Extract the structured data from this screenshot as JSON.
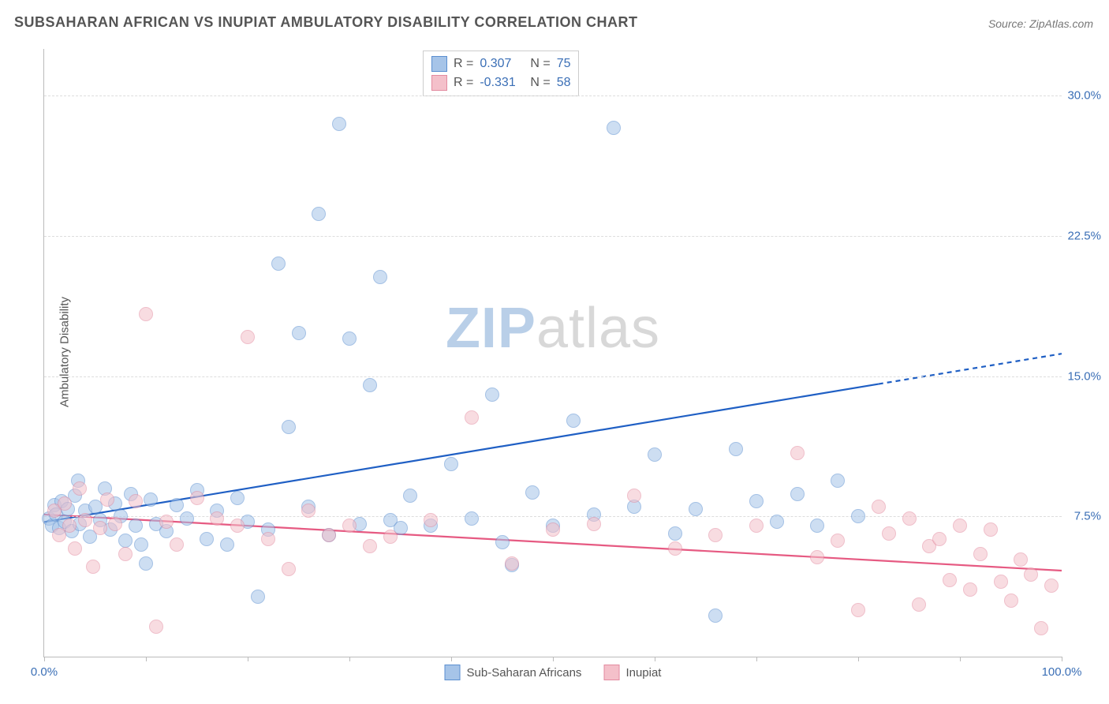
{
  "title": "SUBSAHARAN AFRICAN VS INUPIAT AMBULATORY DISABILITY CORRELATION CHART",
  "source_label": "Source:",
  "source_value": "ZipAtlas.com",
  "y_axis_label": "Ambulatory Disability",
  "watermark_a": "ZIP",
  "watermark_b": "atlas",
  "watermark_color_a": "#b9cfe8",
  "watermark_color_b": "#d8d8d8",
  "chart": {
    "type": "scatter",
    "xlim": [
      0,
      100
    ],
    "ylim": [
      0,
      32.5
    ],
    "x_ticks": [
      0,
      10,
      20,
      30,
      40,
      50,
      60,
      70,
      80,
      90,
      100
    ],
    "x_tick_labels": {
      "0": "0.0%",
      "100": "100.0%"
    },
    "y_gridlines": [
      7.5,
      15.0,
      22.5,
      30.0
    ],
    "y_tick_labels": [
      "7.5%",
      "15.0%",
      "22.5%",
      "30.0%"
    ],
    "y_tick_color": "#3b6fb6",
    "x_tick_color": "#3b6fb6",
    "background": "#ffffff",
    "grid_color": "#dddddd",
    "axis_color": "#bbbbbb",
    "marker_radius": 8,
    "marker_opacity": 0.55,
    "series": [
      {
        "id": "subsaharan",
        "label": "Sub-Saharan Africans",
        "fill": "#a6c4e8",
        "stroke": "#5b8fd0",
        "trend_color": "#1f5fc4",
        "trend_width": 2.2,
        "trend": {
          "x1": 0,
          "y1": 7.2,
          "x2": 100,
          "y2": 16.2,
          "solid_until_x": 82
        },
        "r_value": "0.307",
        "n_value": "75",
        "points": [
          [
            0.5,
            7.4
          ],
          [
            0.8,
            7.0
          ],
          [
            1.0,
            8.1
          ],
          [
            1.2,
            7.6
          ],
          [
            1.5,
            6.9
          ],
          [
            1.7,
            8.3
          ],
          [
            2.0,
            7.2
          ],
          [
            2.3,
            7.9
          ],
          [
            2.7,
            6.7
          ],
          [
            3.0,
            8.6
          ],
          [
            3.3,
            9.4
          ],
          [
            3.5,
            7.1
          ],
          [
            4.0,
            7.8
          ],
          [
            4.5,
            6.4
          ],
          [
            5.0,
            8.0
          ],
          [
            5.5,
            7.3
          ],
          [
            6.0,
            9.0
          ],
          [
            6.5,
            6.8
          ],
          [
            7.0,
            8.2
          ],
          [
            7.5,
            7.5
          ],
          [
            8.0,
            6.2
          ],
          [
            8.5,
            8.7
          ],
          [
            9.0,
            7.0
          ],
          [
            9.5,
            6.0
          ],
          [
            10.0,
            5.0
          ],
          [
            10.5,
            8.4
          ],
          [
            11.0,
            7.1
          ],
          [
            12.0,
            6.7
          ],
          [
            13.0,
            8.1
          ],
          [
            14.0,
            7.4
          ],
          [
            15.0,
            8.9
          ],
          [
            16.0,
            6.3
          ],
          [
            17.0,
            7.8
          ],
          [
            18.0,
            6.0
          ],
          [
            19.0,
            8.5
          ],
          [
            20.0,
            7.2
          ],
          [
            21.0,
            3.2
          ],
          [
            22.0,
            6.8
          ],
          [
            23.0,
            21.0
          ],
          [
            24.0,
            12.3
          ],
          [
            25.0,
            17.3
          ],
          [
            26.0,
            8.0
          ],
          [
            27.0,
            23.7
          ],
          [
            28.0,
            6.5
          ],
          [
            29.0,
            28.5
          ],
          [
            30.0,
            17.0
          ],
          [
            31.0,
            7.1
          ],
          [
            32.0,
            14.5
          ],
          [
            33.0,
            20.3
          ],
          [
            34.0,
            7.3
          ],
          [
            35.0,
            6.9
          ],
          [
            36.0,
            8.6
          ],
          [
            38.0,
            7.0
          ],
          [
            40.0,
            10.3
          ],
          [
            42.0,
            7.4
          ],
          [
            44.0,
            14.0
          ],
          [
            45.0,
            6.1
          ],
          [
            46.0,
            4.9
          ],
          [
            48.0,
            8.8
          ],
          [
            50.0,
            7.0
          ],
          [
            52.0,
            12.6
          ],
          [
            54.0,
            7.6
          ],
          [
            56.0,
            28.3
          ],
          [
            58.0,
            8.0
          ],
          [
            60.0,
            10.8
          ],
          [
            62.0,
            6.6
          ],
          [
            64.0,
            7.9
          ],
          [
            66.0,
            2.2
          ],
          [
            68.0,
            11.1
          ],
          [
            70.0,
            8.3
          ],
          [
            72.0,
            7.2
          ],
          [
            74.0,
            8.7
          ],
          [
            76.0,
            7.0
          ],
          [
            78.0,
            9.4
          ],
          [
            80.0,
            7.5
          ]
        ]
      },
      {
        "id": "inupiat",
        "label": "Inupiat",
        "fill": "#f4c0ca",
        "stroke": "#e38ba0",
        "trend_color": "#e65a82",
        "trend_width": 2.2,
        "trend": {
          "x1": 0,
          "y1": 7.6,
          "x2": 100,
          "y2": 4.6,
          "solid_until_x": 100
        },
        "r_value": "-0.331",
        "n_value": "58",
        "points": [
          [
            1.0,
            7.8
          ],
          [
            1.5,
            6.5
          ],
          [
            2.0,
            8.2
          ],
          [
            2.5,
            7.0
          ],
          [
            3.0,
            5.8
          ],
          [
            3.5,
            9.0
          ],
          [
            4.0,
            7.3
          ],
          [
            4.8,
            4.8
          ],
          [
            5.5,
            6.9
          ],
          [
            6.2,
            8.4
          ],
          [
            7.0,
            7.1
          ],
          [
            8.0,
            5.5
          ],
          [
            9.0,
            8.3
          ],
          [
            10.0,
            18.3
          ],
          [
            11.0,
            1.6
          ],
          [
            12.0,
            7.2
          ],
          [
            13.0,
            6.0
          ],
          [
            15.0,
            8.5
          ],
          [
            17.0,
            7.4
          ],
          [
            19.0,
            7.0
          ],
          [
            20.0,
            17.1
          ],
          [
            22.0,
            6.3
          ],
          [
            24.0,
            4.7
          ],
          [
            26.0,
            7.8
          ],
          [
            28.0,
            6.5
          ],
          [
            30.0,
            7.0
          ],
          [
            32.0,
            5.9
          ],
          [
            34.0,
            6.4
          ],
          [
            38.0,
            7.3
          ],
          [
            42.0,
            12.8
          ],
          [
            46.0,
            5.0
          ],
          [
            50.0,
            6.8
          ],
          [
            54.0,
            7.1
          ],
          [
            58.0,
            8.6
          ],
          [
            62.0,
            5.8
          ],
          [
            66.0,
            6.5
          ],
          [
            70.0,
            7.0
          ],
          [
            74.0,
            10.9
          ],
          [
            76.0,
            5.3
          ],
          [
            78.0,
            6.2
          ],
          [
            80.0,
            2.5
          ],
          [
            82.0,
            8.0
          ],
          [
            83.0,
            6.6
          ],
          [
            85.0,
            7.4
          ],
          [
            86.0,
            2.8
          ],
          [
            87.0,
            5.9
          ],
          [
            88.0,
            6.3
          ],
          [
            89.0,
            4.1
          ],
          [
            90.0,
            7.0
          ],
          [
            91.0,
            3.6
          ],
          [
            92.0,
            5.5
          ],
          [
            93.0,
            6.8
          ],
          [
            94.0,
            4.0
          ],
          [
            95.0,
            3.0
          ],
          [
            96.0,
            5.2
          ],
          [
            97.0,
            4.4
          ],
          [
            98.0,
            1.5
          ],
          [
            99.0,
            3.8
          ]
        ]
      }
    ]
  },
  "legend_top_r_label": "R =",
  "legend_top_n_label": "N =",
  "legend_top_value_color": "#3b6fb6",
  "legend_top_text_color": "#555555"
}
